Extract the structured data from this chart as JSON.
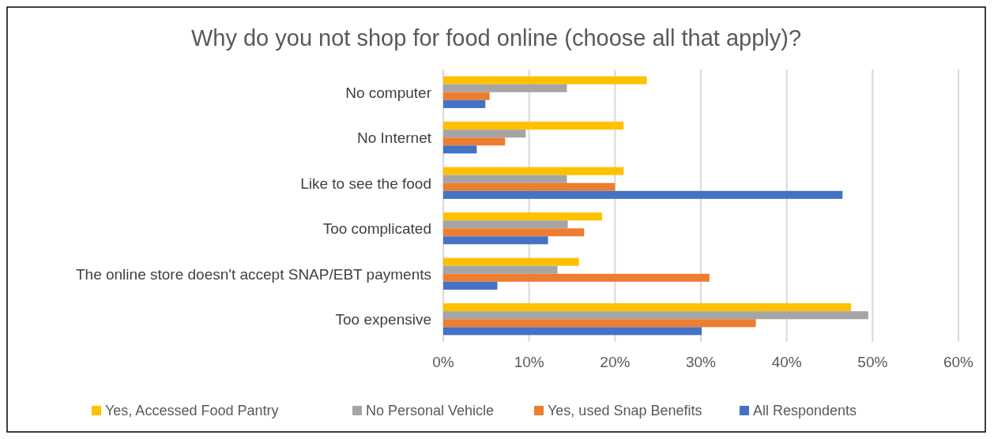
{
  "chart_data": {
    "type": "bar",
    "orientation": "horizontal",
    "title": "Why do you not shop for food online (choose all that apply)?",
    "categories": [
      "No computer",
      "No Internet",
      "Like to see the food",
      "Too complicated",
      "The online store doesn't accept SNAP/EBT payments",
      "Too expensive"
    ],
    "series": [
      {
        "name": "Yes, Accessed Food Pantry",
        "color": "#ffc000",
        "values": [
          23.7,
          21.0,
          21.0,
          18.5,
          15.8,
          47.5
        ]
      },
      {
        "name": "No Personal Vehicle",
        "color": "#a5a5a5",
        "values": [
          14.4,
          9.6,
          14.4,
          14.5,
          13.3,
          49.5
        ]
      },
      {
        "name": "Yes, used Snap Benefits",
        "color": "#ed7d31",
        "values": [
          5.4,
          7.2,
          20.0,
          16.4,
          31.0,
          36.4
        ]
      },
      {
        "name": "All Respondents",
        "color": "#4472c4",
        "values": [
          4.9,
          3.9,
          46.5,
          12.2,
          6.3,
          30.1
        ]
      }
    ],
    "xlim": [
      0,
      60
    ],
    "xticks": [
      {
        "value": 0,
        "label": "0%"
      },
      {
        "value": 10,
        "label": "10%"
      },
      {
        "value": 20,
        "label": "20%"
      },
      {
        "value": 30,
        "label": "30%"
      },
      {
        "value": 40,
        "label": "40%"
      },
      {
        "value": 50,
        "label": "50%"
      },
      {
        "value": 60,
        "label": "60%"
      }
    ],
    "grid": "x",
    "legend": "bottom"
  }
}
